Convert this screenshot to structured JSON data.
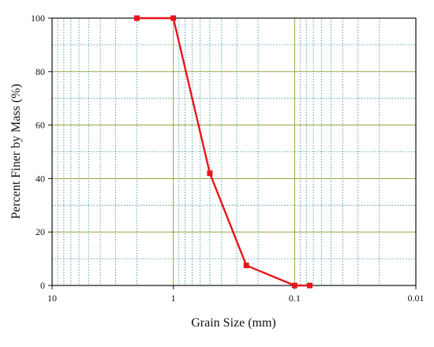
{
  "chart_data": {
    "type": "line",
    "title": "",
    "xlabel": "Grain Size (mm)",
    "ylabel": "Percent Finer by Mass (%)",
    "xscale": "log",
    "x_direction": "reversed",
    "xlim": [
      10,
      0.01
    ],
    "ylim": [
      0,
      100
    ],
    "xticks": [
      "10",
      "1",
      "0.1",
      "0.01"
    ],
    "yticks": [
      "0",
      "20",
      "40",
      "60",
      "80",
      "100"
    ],
    "grid": true,
    "legend": "none",
    "series": [
      {
        "x": [
          2,
          1,
          0.5,
          0.25,
          0.1,
          0.075
        ],
        "y": [
          100,
          100,
          42,
          7.5,
          0,
          0
        ]
      }
    ],
    "colors": {
      "series": "#e8141b",
      "major_grid": "#8a9a2a",
      "minor_grid": "#2e8f96",
      "axis": "#111111"
    }
  }
}
